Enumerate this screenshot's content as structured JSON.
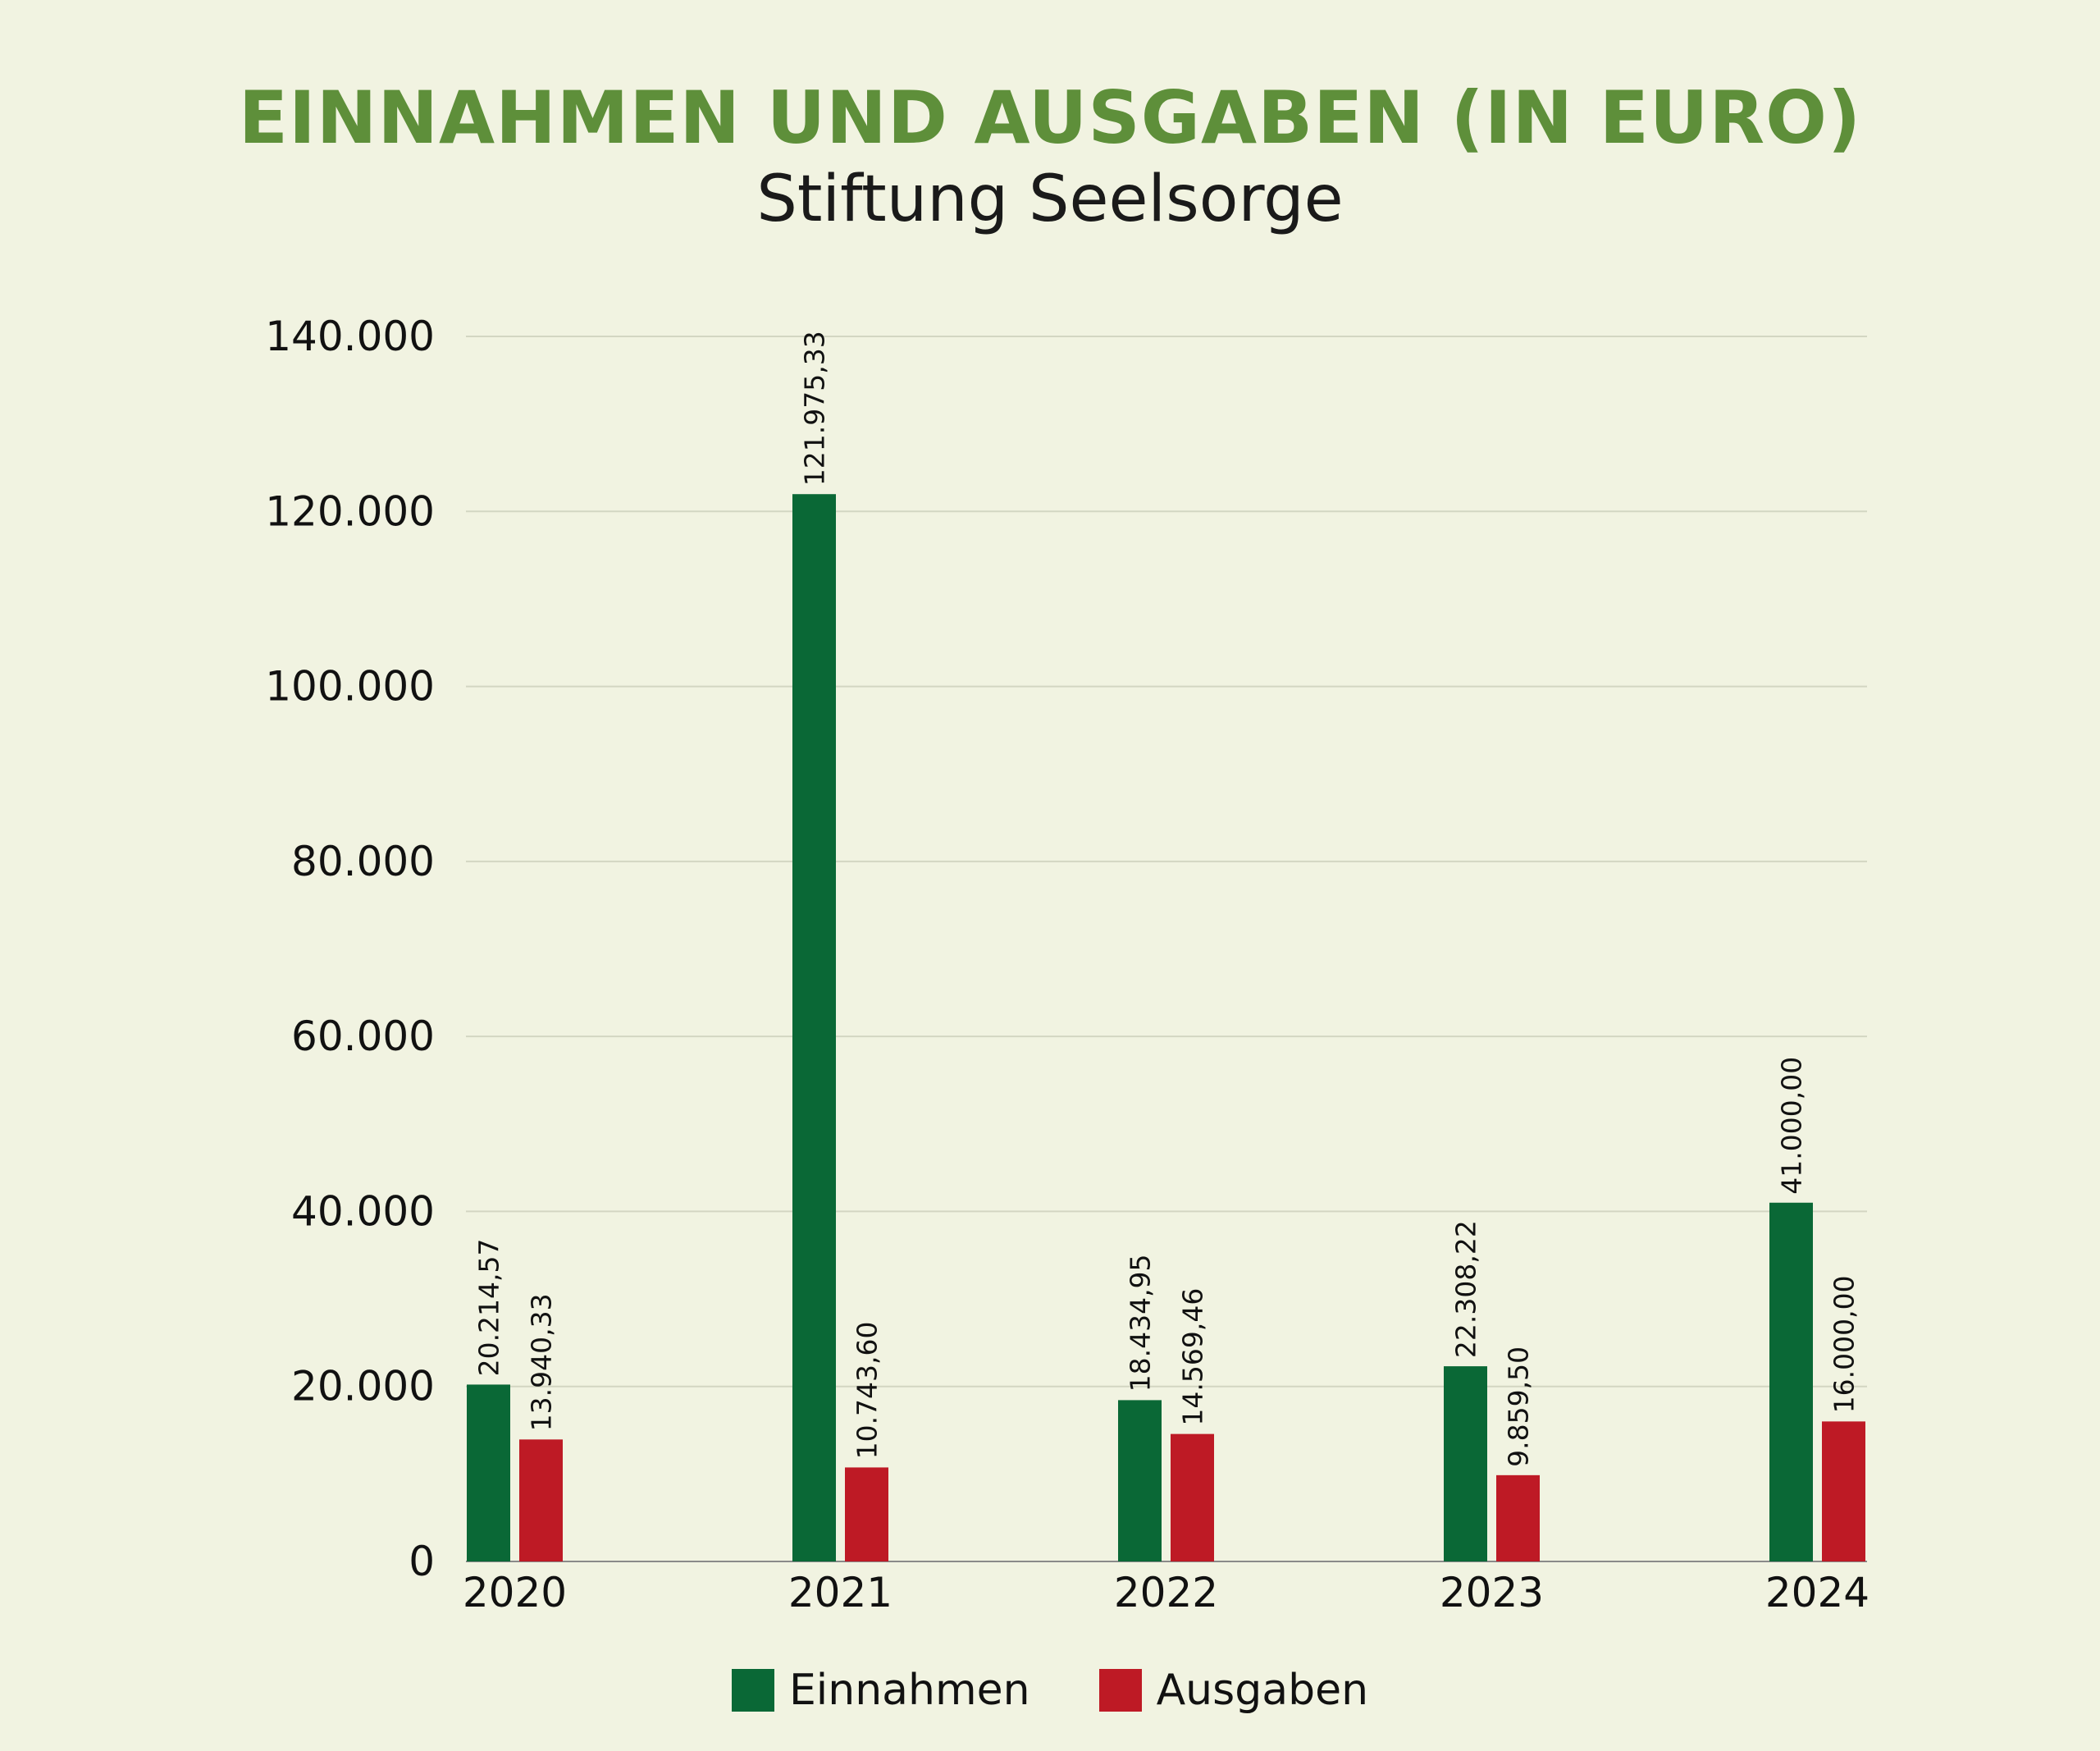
{
  "chart_data": {
    "type": "bar",
    "title": "EINNAHMEN UND AUSGABEN (IN EURO)",
    "subtitle": "Stiftung Seelsorge",
    "categories": [
      "2020",
      "2021",
      "2022",
      "2023",
      "2024"
    ],
    "series": [
      {
        "name": "Einnahmen",
        "color": "#0a6836",
        "values": [
          20214.57,
          121975.33,
          18434.95,
          22308.22,
          41000.0
        ],
        "labels": [
          "20.214,57",
          "121.975,33",
          "18.434,95",
          "22.308,22",
          "41.000,00"
        ]
      },
      {
        "name": "Ausgaben",
        "color": "#be1a25",
        "values": [
          13940.33,
          10743.6,
          14569.46,
          9859.5,
          16000.0
        ],
        "labels": [
          "13.940,33",
          "10.743,60",
          "14.569,46",
          "9.859,50",
          "16.000,00"
        ]
      }
    ],
    "ylim": [
      0,
      140000
    ],
    "yticks": [
      0,
      20000,
      40000,
      60000,
      80000,
      100000,
      120000,
      140000
    ],
    "ytick_labels": [
      "0",
      "20.000",
      "40.000",
      "60.000",
      "80.000",
      "100.000",
      "120.000",
      "140.000"
    ],
    "grid": true,
    "legend_position": "bottom-center",
    "title_color": "#5e8f3a"
  }
}
